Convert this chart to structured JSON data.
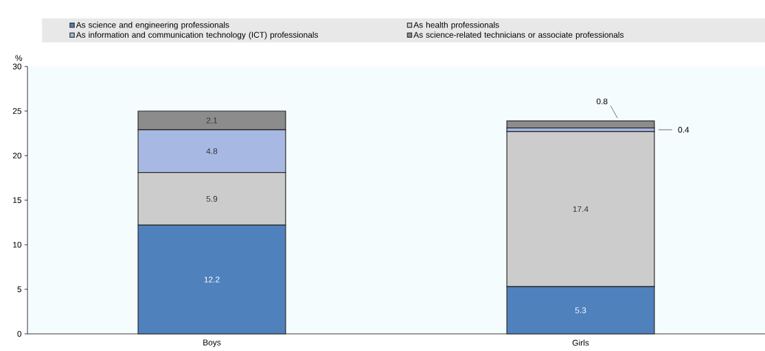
{
  "chart_data": {
    "type": "bar",
    "stacked": true,
    "ylabel": "%",
    "categories": [
      "Boys",
      "Girls"
    ],
    "series": [
      {
        "name": "As science and engineering professionals",
        "color": "#4f81bd",
        "values": [
          12.2,
          5.3
        ]
      },
      {
        "name": "As health professionals",
        "color": "#cccccc",
        "values": [
          5.9,
          17.4
        ]
      },
      {
        "name": "As information and communication technology (ICT) professionals",
        "color": "#a7b9e3",
        "values": [
          4.8,
          0.4
        ]
      },
      {
        "name": "As science-related technicians or associate professionals",
        "color": "#8c8c8c",
        "values": [
          2.1,
          0.8
        ]
      }
    ],
    "ylim": [
      0,
      30
    ],
    "yticks": [
      0,
      5,
      10,
      15,
      20,
      25,
      30
    ],
    "data_labels": true,
    "legend": "top",
    "grid": false
  }
}
